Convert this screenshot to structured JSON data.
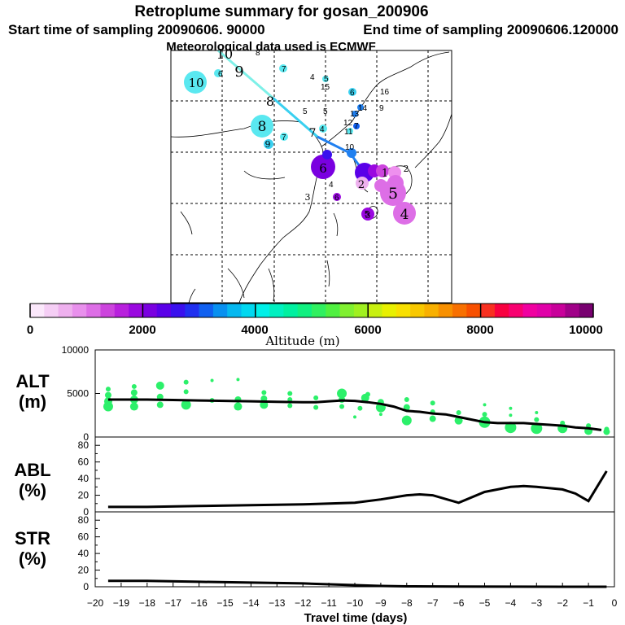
{
  "header": {
    "title": "Retroplume summary for gosan_200906",
    "start_time": "Start time of sampling 20090606. 90000",
    "end_time": "End time of sampling 20090606.120000",
    "met_data": "Meteorological data used is ECMWF"
  },
  "colorbar": {
    "label": "Altitude (m)",
    "ticks": [
      "0",
      "2000",
      "4000",
      "6000",
      "8000",
      "10000"
    ],
    "colors": [
      "#fbe8fb",
      "#f5cef5",
      "#eeb0ee",
      "#e890ec",
      "#dd6ee6",
      "#cc44dd",
      "#b820dd",
      "#9a08e0",
      "#7a00e0",
      "#5a00e8",
      "#3a10ee",
      "#2030f0",
      "#1060f0",
      "#0890f0",
      "#05b8f0",
      "#00d8f0",
      "#00f0e8",
      "#00f0c0",
      "#00f0a0",
      "#10f080",
      "#30f060",
      "#50f040",
      "#80f030",
      "#a0f020",
      "#c8f010",
      "#e8f000",
      "#f8e000",
      "#f8c800",
      "#f8b000",
      "#f89000",
      "#f87000",
      "#f85000",
      "#f83020",
      "#f80040",
      "#f80070",
      "#f000a0",
      "#e000a8",
      "#c8009a",
      "#a00088",
      "#780070"
    ]
  },
  "map": {
    "labels": [
      {
        "t": "10",
        "c": "#7ef0e8"
      },
      {
        "t": "9",
        "c": "#7ef0e8"
      },
      {
        "t": "8",
        "c": "#7ef0e8"
      },
      {
        "t": "7",
        "c": "#7ef0e8"
      },
      {
        "t": "4",
        "c": "#7ef0e8"
      },
      {
        "t": "6",
        "c": "#3ad0f0"
      },
      {
        "t": "16",
        "c": "#7ef0e8"
      },
      {
        "t": "14",
        "c": "#3ad0f0"
      },
      {
        "t": "13",
        "c": "#3ad0f0"
      },
      {
        "t": "12",
        "c": "#2080f0"
      },
      {
        "t": "11",
        "c": "#7ef0e8"
      },
      {
        "t": "9",
        "c": "#7ef0e8"
      },
      {
        "t": "7",
        "c": "#7ef0e8"
      },
      {
        "t": "8",
        "c": "#3ad0f0"
      },
      {
        "t": "5",
        "c": "#7ef0e8"
      },
      {
        "t": "2",
        "c": "#ee90ee"
      },
      {
        "t": "5",
        "c": "#ee90ee"
      },
      {
        "t": "6",
        "c": "#ee90ee"
      },
      {
        "t": "5",
        "c": "#cc44dd"
      },
      {
        "t": "4",
        "c": "#cc44dd"
      }
    ],
    "ticks_text": [
      "10",
      "9",
      "8",
      "10",
      "8",
      "9",
      "7",
      "6",
      "5",
      "4",
      "3",
      "2",
      "1",
      "2",
      "3"
    ]
  },
  "chart_data": [
    {
      "type": "scatter",
      "title": "ALT (m)",
      "ylabel": "ALT (m)",
      "xlabel": "Travel time (days)",
      "xlim": [
        -20,
        0
      ],
      "ylim": [
        0,
        10000
      ],
      "yticks": [
        "0",
        "5000",
        "10000"
      ],
      "line": {
        "x": [
          -19.5,
          -19,
          -18,
          -17,
          -16,
          -15,
          -14,
          -13,
          -12,
          -11.5,
          -11,
          -10.5,
          -10,
          -9.5,
          -9,
          -8.5,
          -8,
          -7.5,
          -7,
          -6.5,
          -6,
          -5.5,
          -5,
          -4.5,
          -4,
          -3.5,
          -3,
          -2.5,
          -2,
          -1.5,
          -1,
          -0.5
        ],
        "y": [
          4300,
          4300,
          4300,
          4250,
          4200,
          4150,
          4100,
          4050,
          4000,
          4000,
          4100,
          4200,
          4150,
          4000,
          3800,
          3500,
          3000,
          2900,
          2700,
          2600,
          2300,
          2000,
          1700,
          1600,
          1600,
          1600,
          1500,
          1400,
          1300,
          1100,
          1000,
          800
        ]
      },
      "points": [
        {
          "x": -19.5,
          "y": 3500,
          "s": 6
        },
        {
          "x": -19.5,
          "y": 4100,
          "s": 5
        },
        {
          "x": -19.5,
          "y": 4800,
          "s": 4
        },
        {
          "x": -19.5,
          "y": 5500,
          "s": 3
        },
        {
          "x": -18.5,
          "y": 3500,
          "s": 5
        },
        {
          "x": -18.5,
          "y": 4300,
          "s": 5
        },
        {
          "x": -18.5,
          "y": 5100,
          "s": 4
        },
        {
          "x": -18.5,
          "y": 5800,
          "s": 3
        },
        {
          "x": -17.5,
          "y": 3700,
          "s": 4
        },
        {
          "x": -17.5,
          "y": 4600,
          "s": 4
        },
        {
          "x": -17.5,
          "y": 5900,
          "s": 5
        },
        {
          "x": -16.5,
          "y": 3700,
          "s": 6
        },
        {
          "x": -16.5,
          "y": 5200,
          "s": 3
        },
        {
          "x": -16.5,
          "y": 6300,
          "s": 3
        },
        {
          "x": -15.5,
          "y": 4200,
          "s": 3
        },
        {
          "x": -15.5,
          "y": 6500,
          "s": 2
        },
        {
          "x": -14.5,
          "y": 3500,
          "s": 5
        },
        {
          "x": -14.5,
          "y": 4300,
          "s": 4
        },
        {
          "x": -14.5,
          "y": 6600,
          "s": 2
        },
        {
          "x": -13.5,
          "y": 3700,
          "s": 5
        },
        {
          "x": -13.5,
          "y": 4400,
          "s": 4
        },
        {
          "x": -13.5,
          "y": 5100,
          "s": 3
        },
        {
          "x": -12.5,
          "y": 3600,
          "s": 3
        },
        {
          "x": -12.5,
          "y": 4300,
          "s": 3
        },
        {
          "x": -12.5,
          "y": 5000,
          "s": 3
        },
        {
          "x": -11.5,
          "y": 3400,
          "s": 3
        },
        {
          "x": -11.5,
          "y": 4500,
          "s": 3
        },
        {
          "x": -10.5,
          "y": 3500,
          "s": 3
        },
        {
          "x": -10.5,
          "y": 4300,
          "s": 4
        },
        {
          "x": -10.5,
          "y": 5000,
          "s": 6
        },
        {
          "x": -10,
          "y": 2300,
          "s": 2
        },
        {
          "x": -9.8,
          "y": 3300,
          "s": 3
        },
        {
          "x": -9.6,
          "y": 4500,
          "s": 5
        },
        {
          "x": -9.5,
          "y": 4900,
          "s": 3
        },
        {
          "x": -9,
          "y": 2600,
          "s": 2
        },
        {
          "x": -9,
          "y": 3400,
          "s": 6
        },
        {
          "x": -9,
          "y": 4000,
          "s": 4
        },
        {
          "x": -8,
          "y": 1900,
          "s": 6
        },
        {
          "x": -8,
          "y": 3400,
          "s": 4
        },
        {
          "x": -8,
          "y": 4300,
          "s": 3
        },
        {
          "x": -7,
          "y": 2100,
          "s": 4
        },
        {
          "x": -7,
          "y": 2900,
          "s": 3
        },
        {
          "x": -7,
          "y": 3900,
          "s": 3
        },
        {
          "x": -6,
          "y": 1900,
          "s": 5
        },
        {
          "x": -6,
          "y": 2800,
          "s": 3
        },
        {
          "x": -5,
          "y": 1700,
          "s": 7
        },
        {
          "x": -5,
          "y": 2600,
          "s": 3
        },
        {
          "x": -5,
          "y": 3700,
          "s": 2
        },
        {
          "x": -4,
          "y": 1100,
          "s": 7
        },
        {
          "x": -4,
          "y": 2500,
          "s": 2
        },
        {
          "x": -4,
          "y": 3300,
          "s": 2
        },
        {
          "x": -3,
          "y": 1000,
          "s": 7
        },
        {
          "x": -3,
          "y": 2000,
          "s": 3
        },
        {
          "x": -3,
          "y": 2800,
          "s": 2
        },
        {
          "x": -2,
          "y": 1000,
          "s": 6
        },
        {
          "x": -2,
          "y": 1600,
          "s": 3
        },
        {
          "x": -1,
          "y": 700,
          "s": 5
        },
        {
          "x": -1,
          "y": 1300,
          "s": 3
        },
        {
          "x": -0.3,
          "y": 600,
          "s": 4
        },
        {
          "x": -0.3,
          "y": 900,
          "s": 3
        }
      ]
    },
    {
      "type": "line",
      "title": "ABL (%)",
      "ylabel": "ABL (%)",
      "xlim": [
        -20,
        0
      ],
      "ylim": [
        0,
        90
      ],
      "yticks": [
        "0",
        "20",
        "40",
        "60",
        "80"
      ],
      "yticks_minor": [
        "10",
        "30",
        "50",
        "70"
      ],
      "x": [
        -19.5,
        -18,
        -16,
        -14,
        -12,
        -10,
        -9,
        -8,
        -7.5,
        -7,
        -6,
        -5,
        -4.5,
        -4,
        -3.5,
        -3,
        -2,
        -1.5,
        -1,
        -0.3
      ],
      "y": [
        6,
        6,
        7,
        8,
        9,
        11,
        15,
        20,
        21,
        20,
        11,
        24,
        27,
        30,
        31,
        30,
        27,
        22,
        13,
        49
      ]
    },
    {
      "type": "line",
      "title": "STR (%)",
      "ylabel": "STR (%)",
      "xlim": [
        -20,
        0
      ],
      "ylim": [
        0,
        90
      ],
      "yticks": [
        "0",
        "20",
        "40",
        "60",
        "80"
      ],
      "yticks_minor": [
        "10",
        "30",
        "50",
        "70"
      ],
      "xticks": [
        "−20",
        "−19",
        "−18",
        "−17",
        "−16",
        "−15",
        "−14",
        "−13",
        "−12",
        "−11",
        "−10",
        "−9",
        "−8",
        "−7",
        "−6",
        "−5",
        "−4",
        "−3",
        "−2",
        "−1",
        "0"
      ],
      "x": [
        -19.5,
        -18,
        -16,
        -14,
        -12,
        -10,
        -9,
        -8,
        -6,
        -4,
        -2,
        -0.3
      ],
      "y": [
        7,
        7,
        6,
        5,
        4,
        2,
        1,
        0.5,
        0.2,
        0.1,
        0,
        0
      ]
    }
  ]
}
